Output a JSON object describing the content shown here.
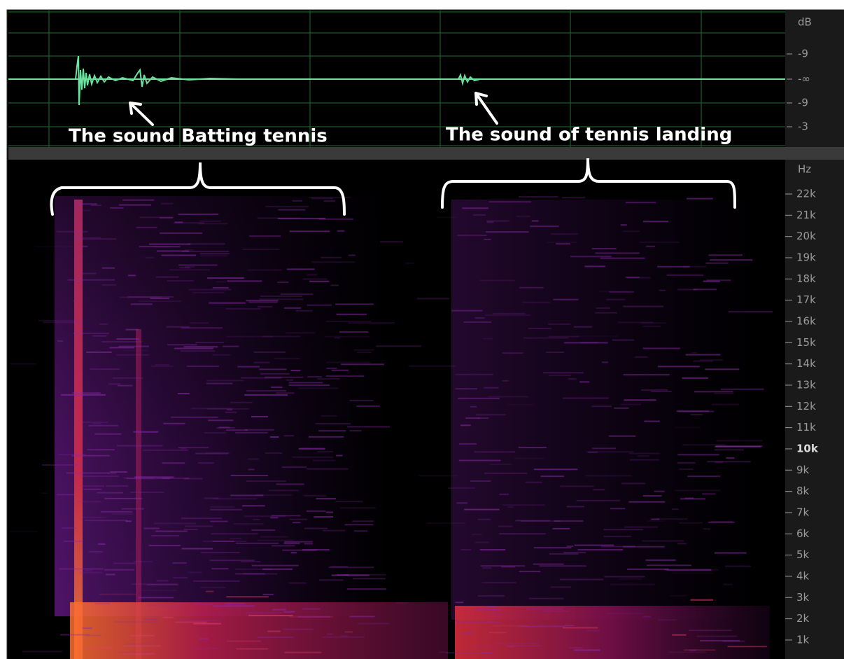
{
  "waveform": {
    "unit_label": "dB",
    "scale_labels": [
      "-9",
      "-∞",
      "-9",
      "-3"
    ]
  },
  "annotations": [
    "The sound Batting tennis",
    "The sound of tennis landing"
  ],
  "spectrogram": {
    "unit_label": "Hz",
    "frequency_labels": [
      "22k",
      "21k",
      "20k",
      "19k",
      "18k",
      "17k",
      "16k",
      "15k",
      "14k",
      "13k",
      "12k",
      "11k",
      "10k",
      "9k",
      "8k",
      "7k",
      "6k",
      "5k",
      "4k",
      "3k",
      "2k",
      "1k"
    ]
  }
}
